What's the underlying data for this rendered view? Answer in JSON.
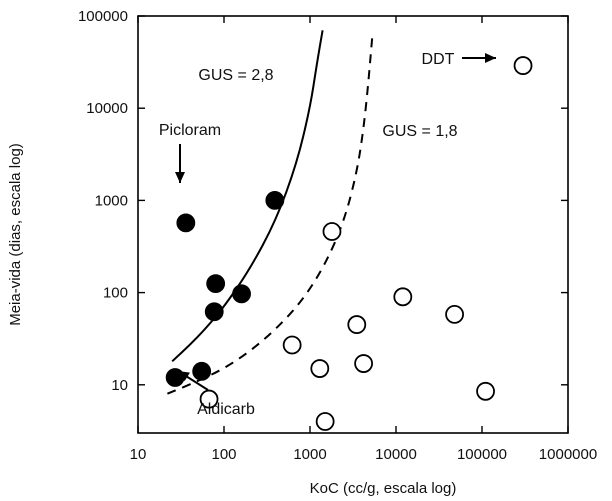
{
  "chart_data": {
    "type": "scatter",
    "xlabel": "KoC (cc/g, escala log)",
    "ylabel": "Meia-vida (dias, escala log)",
    "xscale": "log",
    "yscale": "log",
    "xlim": [
      10,
      1000000
    ],
    "ylim": [
      3,
      100000
    ],
    "grid": false,
    "x_ticks": [
      {
        "value": 10,
        "label": "10"
      },
      {
        "value": 100,
        "label": "100"
      },
      {
        "value": 1000,
        "label": "1000"
      },
      {
        "value": 10000,
        "label": "10000"
      },
      {
        "value": 100000,
        "label": "100000"
      },
      {
        "value": 1000000,
        "label": "1000000"
      }
    ],
    "y_ticks": [
      {
        "value": 10,
        "label": "10"
      },
      {
        "value": 100,
        "label": "100"
      },
      {
        "value": 1000,
        "label": "1000"
      },
      {
        "value": 10000,
        "label": "10000"
      },
      {
        "value": 100000,
        "label": "100000"
      }
    ],
    "series": [
      {
        "marker": "filled-circle",
        "color": "#000000",
        "points": [
          {
            "x": 36,
            "y": 570
          },
          {
            "x": 390,
            "y": 1000
          },
          {
            "x": 80,
            "y": 125
          },
          {
            "x": 160,
            "y": 97
          },
          {
            "x": 77,
            "y": 62
          },
          {
            "x": 27,
            "y": 12
          },
          {
            "x": 55,
            "y": 14
          }
        ]
      },
      {
        "marker": "open-circle",
        "color": "#000000",
        "points": [
          {
            "x": 300000,
            "y": 29000
          },
          {
            "x": 1800,
            "y": 460
          },
          {
            "x": 12000,
            "y": 90
          },
          {
            "x": 48000,
            "y": 58
          },
          {
            "x": 3500,
            "y": 45
          },
          {
            "x": 620,
            "y": 27
          },
          {
            "x": 1300,
            "y": 15
          },
          {
            "x": 4200,
            "y": 17
          },
          {
            "x": 67,
            "y": 7
          },
          {
            "x": 1500,
            "y": 4
          },
          {
            "x": 110000,
            "y": 8.5
          }
        ]
      }
    ],
    "curves": [
      {
        "label": "GUS = 2,8",
        "style": "solid",
        "points": [
          [
            25,
            18
          ],
          [
            40,
            27
          ],
          [
            60,
            40
          ],
          [
            100,
            70
          ],
          [
            200,
            180
          ],
          [
            400,
            600
          ],
          [
            700,
            2500
          ],
          [
            1000,
            10000
          ],
          [
            1200,
            30000
          ],
          [
            1400,
            70000
          ]
        ]
      },
      {
        "label": "GUS = 1,8",
        "style": "dashed",
        "points": [
          [
            22,
            8
          ],
          [
            50,
            11
          ],
          [
            100,
            15
          ],
          [
            200,
            23
          ],
          [
            400,
            40
          ],
          [
            800,
            80
          ],
          [
            1500,
            200
          ],
          [
            2500,
            600
          ],
          [
            3500,
            2000
          ],
          [
            4200,
            6000
          ],
          [
            4800,
            20000
          ],
          [
            5300,
            60000
          ]
        ]
      }
    ],
    "annotations": [
      {
        "text": "Picloram",
        "x": 25,
        "y": 2000,
        "arrow_to": [
          36,
          570
        ]
      },
      {
        "text": "Aldicarb",
        "x": 35,
        "y": 3.5,
        "arrow_to": [
          22,
          8
        ]
      },
      {
        "text": "DDT",
        "x": 22000,
        "y": 29000,
        "arrow_to": [
          220000,
          29000
        ]
      }
    ]
  }
}
